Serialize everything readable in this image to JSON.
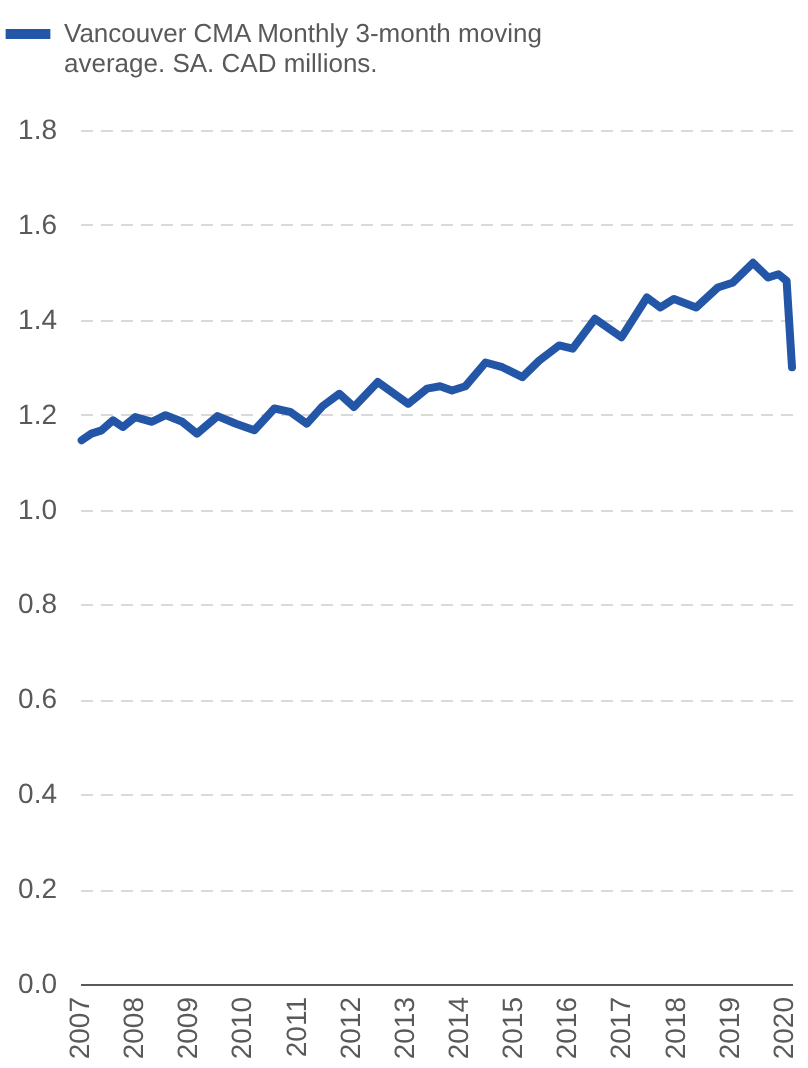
{
  "chart_data": {
    "type": "line",
    "x": [
      2007.03,
      2007.21,
      2007.4,
      2007.61,
      2007.79,
      2008.02,
      2008.33,
      2008.58,
      2008.89,
      2009.16,
      2009.54,
      2009.88,
      2010.22,
      2010.59,
      2010.88,
      2011.19,
      2011.48,
      2011.79,
      2012.06,
      2012.5,
      2013.06,
      2013.41,
      2013.65,
      2013.87,
      2014.12,
      2014.49,
      2014.8,
      2015.17,
      2015.48,
      2015.85,
      2016.1,
      2016.51,
      2017.0,
      2017.47,
      2017.72,
      2017.97,
      2018.38,
      2018.78,
      2019.05,
      2019.43,
      2019.71,
      2019.9,
      2020.05,
      2020.15
    ],
    "series": [
      {
        "name": "Vancouver CMA Monthly 3-month moving average. SA. CAD millions.",
        "color": "#2356a6",
        "values": [
          1.146,
          1.16,
          1.167,
          1.188,
          1.174,
          1.195,
          1.185,
          1.199,
          1.185,
          1.16,
          1.197,
          1.181,
          1.167,
          1.213,
          1.206,
          1.181,
          1.218,
          1.244,
          1.216,
          1.269,
          1.223,
          1.255,
          1.26,
          1.251,
          1.26,
          1.31,
          1.3,
          1.279,
          1.314,
          1.346,
          1.339,
          1.402,
          1.363,
          1.447,
          1.426,
          1.444,
          1.426,
          1.468,
          1.478,
          1.52,
          1.489,
          1.496,
          1.482,
          1.3
        ]
      }
    ],
    "xlim": [
      2007,
      2020.15
    ],
    "xticks": [
      2007,
      2008,
      2009,
      2010,
      2011,
      2012,
      2013,
      2014,
      2015,
      2016,
      2017,
      2018,
      2019,
      2020
    ],
    "ylim": [
      0,
      1.8
    ],
    "yticks": [
      {
        "value": 0,
        "label": "0.0"
      },
      {
        "value": 0.2,
        "label": "0.2"
      },
      {
        "value": 0.4,
        "label": "0.4"
      },
      {
        "value": 0.6,
        "label": "0.6"
      },
      {
        "value": 0.8,
        "label": "0.8"
      },
      {
        "value": 1,
        "label": "1.0"
      },
      {
        "value": 1.2,
        "label": "1.2"
      },
      {
        "value": 1.4,
        "label": "1.4"
      },
      {
        "value": 1.6,
        "label": "1.6"
      },
      {
        "value": 1.8,
        "label": "1.8"
      }
    ],
    "grid": "y",
    "legend": "top left",
    "marker": "none",
    "line_style": "solid"
  }
}
